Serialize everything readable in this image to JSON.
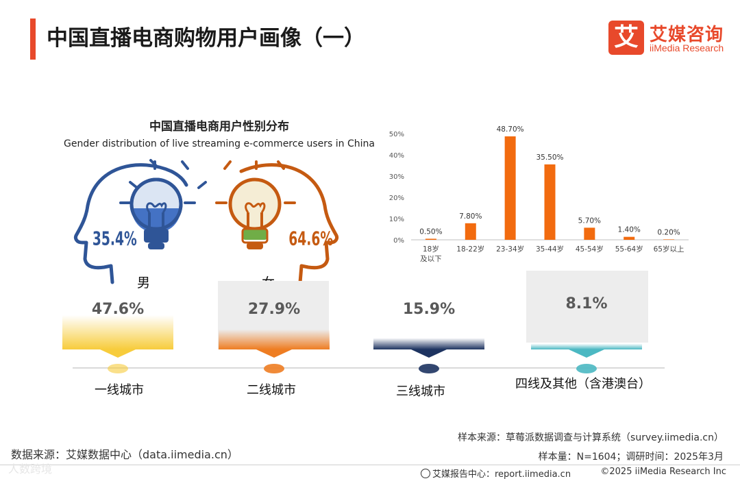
{
  "header": {
    "title": "中国直播电商购物用户画像（一）",
    "logo_mark": "艾",
    "logo_cn": "艾媒咨询",
    "logo_en": "iiMedia Research"
  },
  "gender_chart": {
    "title": "中国直播电商用户性别分布",
    "subtitle": "Gender distribution of live streaming e-commerce users in China",
    "male_pct": "35.4%",
    "female_pct": "64.6%",
    "male_label": "男",
    "female_label": "女"
  },
  "chart_data": [
    {
      "type": "pie",
      "title": "中国直播电商用户性别分布",
      "subtitle": "Gender distribution of live streaming e-commerce users in China",
      "categories": [
        "男",
        "女"
      ],
      "values": [
        35.4,
        64.6
      ]
    },
    {
      "type": "bar",
      "title": "",
      "categories": [
        "18岁及以下",
        "18-22岁",
        "23-34岁",
        "35-44岁",
        "45-54岁",
        "55-64岁",
        "65岁以上"
      ],
      "values": [
        0.5,
        7.8,
        48.7,
        35.5,
        5.7,
        1.4,
        0.2
      ],
      "value_labels": [
        "0.50%",
        "7.80%",
        "48.70%",
        "35.50%",
        "5.70%",
        "1.40%",
        "0.20%"
      ],
      "yticks": [
        "0%",
        "10%",
        "20%",
        "30%",
        "40%",
        "50%"
      ],
      "ylim": [
        0,
        50
      ],
      "color": "#f26b0f"
    },
    {
      "type": "bar",
      "title": "",
      "categories": [
        "一线城市",
        "二线城市",
        "三线城市",
        "四线及其他（含港澳台）"
      ],
      "values": [
        47.6,
        27.9,
        15.9,
        8.1
      ],
      "value_labels": [
        "47.6%",
        "27.9%",
        "15.9%",
        "8.1%"
      ],
      "colors": [
        "#f7cc3c",
        "#ee7d22",
        "#1d3360",
        "#4bb8c2"
      ]
    }
  ],
  "age_chart": {
    "categories_line1": [
      "18岁",
      "18-22岁",
      "23-34岁",
      "35-44岁",
      "45-54岁",
      "55-64岁",
      "65岁以上"
    ],
    "categories_line2": [
      "及以下",
      "",
      "",
      "",
      "",
      "",
      ""
    ]
  },
  "footer": {
    "data_source": "数据来源：艾媒数据中心（data.iimedia.cn）",
    "sample_source": "样本来源：草莓派数据调查与计算系统（survey.iimedia.cn）",
    "sample_size": "样本量：N=1604；调研时间：2025年3月",
    "report_center": "艾媒报告中心：report.iimedia.cn",
    "copyright": "©2025  iiMedia Research  Inc",
    "watermark": "人数跨境"
  }
}
